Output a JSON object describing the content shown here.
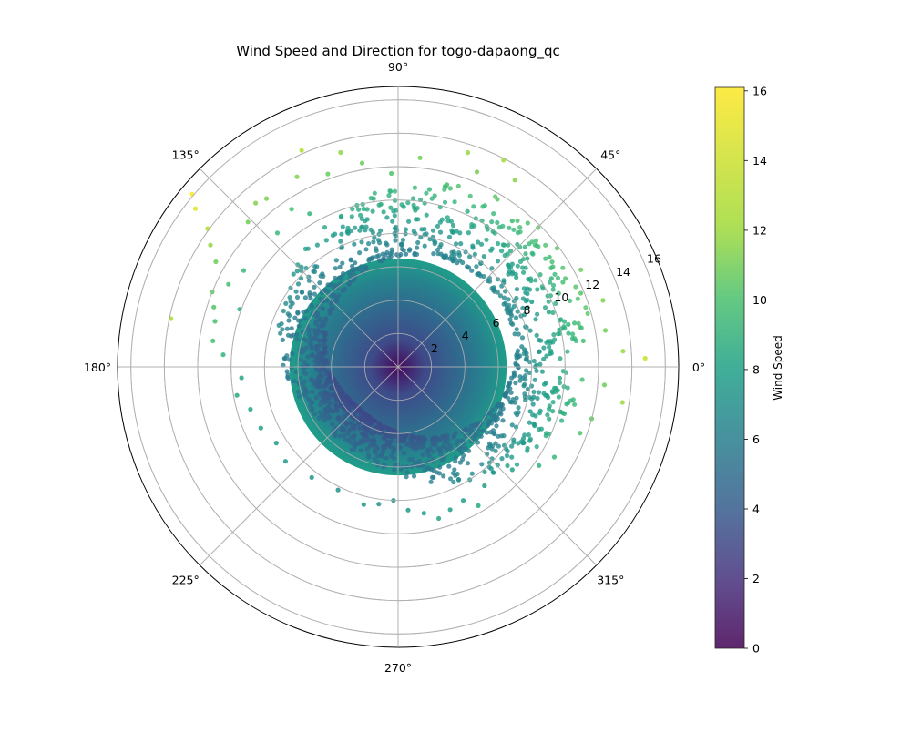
{
  "chart_data": {
    "type": "scatter",
    "projection": "polar",
    "title": "Wind Speed and Direction for togo-dapaong_qc",
    "angle_unit": "degrees",
    "theta_ticks": [
      {
        "value": 0,
        "label": "0°"
      },
      {
        "value": 45,
        "label": "45°"
      },
      {
        "value": 90,
        "label": "90°"
      },
      {
        "value": 135,
        "label": "135°"
      },
      {
        "value": 180,
        "label": "180°"
      },
      {
        "value": 225,
        "label": "225°"
      },
      {
        "value": 270,
        "label": "270°"
      },
      {
        "value": 315,
        "label": "315°"
      }
    ],
    "r_ticks": [
      {
        "value": 2,
        "label": "2"
      },
      {
        "value": 4,
        "label": "4"
      },
      {
        "value": 6,
        "label": "6"
      },
      {
        "value": 8,
        "label": "8"
      },
      {
        "value": 10,
        "label": "10"
      },
      {
        "value": 12,
        "label": "12"
      },
      {
        "value": 14,
        "label": "14"
      },
      {
        "value": 16,
        "label": "16"
      }
    ],
    "rlim": [
      0,
      16.8
    ],
    "grid": true,
    "color_by": "r",
    "colormap": "viridis",
    "colorbar": {
      "label": "Wind Speed",
      "range": [
        0,
        16.1
      ],
      "ticks": [
        {
          "value": 0,
          "label": "0"
        },
        {
          "value": 2,
          "label": "2"
        },
        {
          "value": 4,
          "label": "4"
        },
        {
          "value": 6,
          "label": "6"
        },
        {
          "value": 8,
          "label": "8"
        },
        {
          "value": 10,
          "label": "10"
        },
        {
          "value": 12,
          "label": "12"
        },
        {
          "value": 14,
          "label": "14"
        },
        {
          "value": 16,
          "label": "16"
        }
      ]
    },
    "dense_core": {
      "r_max": 6.5,
      "description_values": "radially continuous speeds 0 to ~6.5 in all directions"
    },
    "points": [
      {
        "theta": 8,
        "r": 11.2
      },
      {
        "theta": 4,
        "r": 13.5
      },
      {
        "theta": 2,
        "r": 14.8
      },
      {
        "theta": 351,
        "r": 13.6
      },
      {
        "theta": 355,
        "r": 12.4
      },
      {
        "theta": 10,
        "r": 12.6
      },
      {
        "theta": 18,
        "r": 12.9
      },
      {
        "theta": 22,
        "r": 11.8
      },
      {
        "theta": 28,
        "r": 12.4
      },
      {
        "theta": 14,
        "r": 10.5
      },
      {
        "theta": 345,
        "r": 12.0
      },
      {
        "theta": 340,
        "r": 11.6
      },
      {
        "theta": 330,
        "r": 10.8
      },
      {
        "theta": 325,
        "r": 10.3
      },
      {
        "theta": 30,
        "r": 10.6
      },
      {
        "theta": 36,
        "r": 11.2
      },
      {
        "theta": 42,
        "r": 9.2
      },
      {
        "theta": 48,
        "r": 11.6
      },
      {
        "theta": 52,
        "r": 11.1
      },
      {
        "theta": 58,
        "r": 13.2
      },
      {
        "theta": 63,
        "r": 13.9
      },
      {
        "theta": 68,
        "r": 12.6
      },
      {
        "theta": 72,
        "r": 13.5
      },
      {
        "theta": 75,
        "r": 11.3
      },
      {
        "theta": 80,
        "r": 10.8
      },
      {
        "theta": 84,
        "r": 12.6
      },
      {
        "theta": 92,
        "r": 11.6
      },
      {
        "theta": 100,
        "r": 12.4
      },
      {
        "theta": 105,
        "r": 13.3
      },
      {
        "theta": 110,
        "r": 12.3
      },
      {
        "theta": 114,
        "r": 14.2
      },
      {
        "theta": 118,
        "r": 12.9
      },
      {
        "theta": 124,
        "r": 11.4
      },
      {
        "theta": 128,
        "r": 12.8
      },
      {
        "theta": 131,
        "r": 13.0
      },
      {
        "theta": 136,
        "r": 12.5
      },
      {
        "theta": 140,
        "r": 16.1
      },
      {
        "theta": 142,
        "r": 15.4
      },
      {
        "theta": 144,
        "r": 14.1
      },
      {
        "theta": 147,
        "r": 13.4
      },
      {
        "theta": 150,
        "r": 12.6
      },
      {
        "theta": 154,
        "r": 11.3
      },
      {
        "theta": 158,
        "r": 12.0
      },
      {
        "theta": 162,
        "r": 11.6
      },
      {
        "theta": 166,
        "r": 11.3
      },
      {
        "theta": 168,
        "r": 13.9
      },
      {
        "theta": 172,
        "r": 11.2
      },
      {
        "theta": 176,
        "r": 10.5
      },
      {
        "theta": 184,
        "r": 9.4
      },
      {
        "theta": 190,
        "r": 9.8
      },
      {
        "theta": 196,
        "r": 9.2
      },
      {
        "theta": 204,
        "r": 9.0
      },
      {
        "theta": 212,
        "r": 8.6
      },
      {
        "theta": 220,
        "r": 8.8
      },
      {
        "theta": 232,
        "r": 8.4
      },
      {
        "theta": 244,
        "r": 8.2
      },
      {
        "theta": 256,
        "r": 8.5
      },
      {
        "theta": 262,
        "r": 8.3
      },
      {
        "theta": 268,
        "r": 8.0
      },
      {
        "theta": 274,
        "r": 8.6
      },
      {
        "theta": 280,
        "r": 8.9
      },
      {
        "theta": 285,
        "r": 9.4
      },
      {
        "theta": 290,
        "r": 9.1
      },
      {
        "theta": 296,
        "r": 8.9
      },
      {
        "theta": 300,
        "r": 9.6
      },
      {
        "theta": 306,
        "r": 8.8
      },
      {
        "theta": 312,
        "r": 8.5
      },
      {
        "theta": 318,
        "r": 9.2
      },
      {
        "theta": 20,
        "r": 9.6
      },
      {
        "theta": 26,
        "r": 8.9
      },
      {
        "theta": 34,
        "r": 9.4
      },
      {
        "theta": 40,
        "r": 10.1
      },
      {
        "theta": 6,
        "r": 9.2
      },
      {
        "theta": 356,
        "r": 9.7
      },
      {
        "theta": 348,
        "r": 10.4
      },
      {
        "theta": 336,
        "r": 9.9
      },
      {
        "theta": 120,
        "r": 10.6
      },
      {
        "theta": 132,
        "r": 10.8
      },
      {
        "theta": 148,
        "r": 10.9
      },
      {
        "theta": 160,
        "r": 10.1
      },
      {
        "theta": 96,
        "r": 9.8
      },
      {
        "theta": 88,
        "r": 9.6
      },
      {
        "theta": 66,
        "r": 10.2
      },
      {
        "theta": 55,
        "r": 9.9
      }
    ]
  }
}
